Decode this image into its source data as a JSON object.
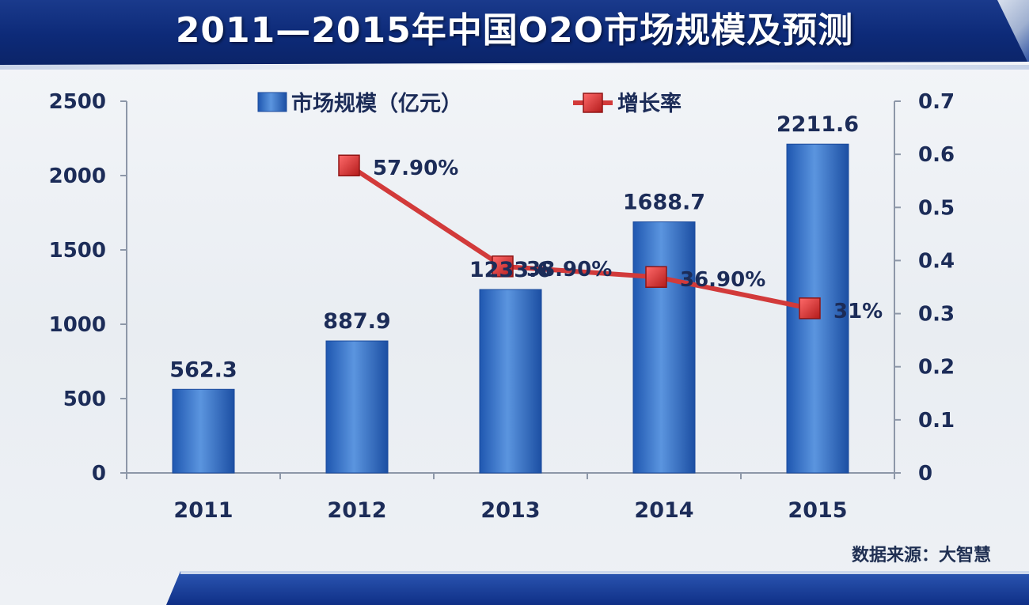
{
  "title": "2011—2015年中国O2O市场规模及预测",
  "source": "数据来源：大智慧",
  "colors": {
    "bar": "#2f6fc9",
    "bar_light": "#6aa3e6",
    "line": "#d23a3a",
    "marker": "#d63030",
    "axis": "#1c2c58"
  },
  "chart_data": {
    "type": "bar",
    "categories": [
      "2011",
      "2012",
      "2013",
      "2014",
      "2015"
    ],
    "series": [
      {
        "name": "市场规模（亿元）",
        "type": "bar",
        "axis": "left",
        "values": [
          562.3,
          887.9,
          1233.6,
          1688.7,
          2211.6
        ],
        "labels": [
          "562.3",
          "887.9",
          "1233.6",
          "1688.7",
          "2211.6"
        ]
      },
      {
        "name": "增长率",
        "type": "line",
        "axis": "right",
        "values": [
          null,
          0.579,
          0.389,
          0.369,
          0.31
        ],
        "labels": [
          "",
          "57.90%",
          "38.90%",
          "36.90%",
          "31%"
        ]
      }
    ],
    "left_axis": {
      "ylim": [
        0,
        2500
      ],
      "ticks": [
        "0",
        "500",
        "1000",
        "1500",
        "2000",
        "2500"
      ]
    },
    "right_axis": {
      "ylim": [
        0,
        0.7
      ],
      "ticks": [
        "0",
        "0.1",
        "0.2",
        "0.3",
        "0.4",
        "0.5",
        "0.6",
        "0.7"
      ]
    },
    "grid": false,
    "legend_position": "top-center"
  }
}
